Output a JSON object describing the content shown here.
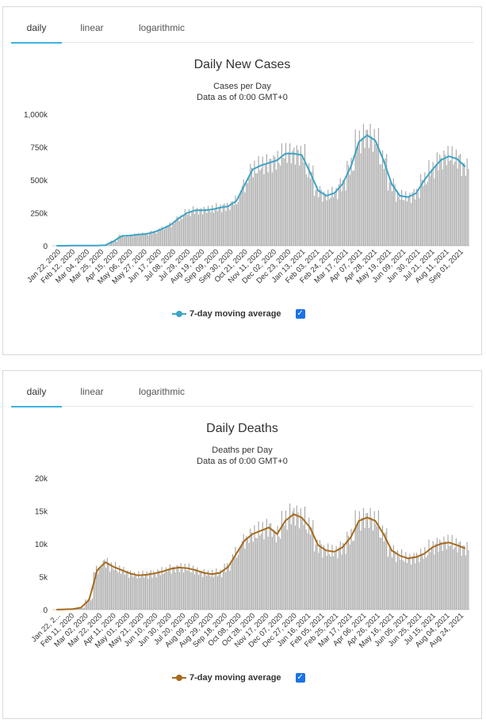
{
  "panels": [
    {
      "id": "cases",
      "tabs": [
        "daily",
        "linear",
        "logarithmic"
      ],
      "active_tab": "daily",
      "legend_label": "7-day moving average",
      "legend_checked": "✓",
      "accent_color": "#3ba4c7",
      "chart_data": {
        "type": "bar",
        "title": "Daily New Cases",
        "subtitle": "Cases per Day",
        "subtitle2": "Data as of 0:00 GMT+0",
        "ylabel": "",
        "xlabel": "",
        "ylim": [
          0,
          1000000
        ],
        "y_ticks": [
          0,
          250000,
          500000,
          750000,
          1000000
        ],
        "y_tick_labels": [
          "0",
          "250k",
          "500k",
          "750k",
          "1,000k"
        ],
        "x_tick_labels": [
          "Jan 22, 2020",
          "Feb 12, 2020",
          "Mar 04, 2020",
          "Mar 25, 2020",
          "Apr 15, 2020",
          "May 06, 2020",
          "May 27, 2020",
          "Jun 17, 2020",
          "Jul 08, 2020",
          "Jul 29, 2020",
          "Aug 19, 2020",
          "Sep 09, 2020",
          "Sep 30, 2020",
          "Oct 21, 2020",
          "Nov 11, 2020",
          "Dec 02, 2020",
          "Dec 23, 2020",
          "Jan 13, 2021",
          "Feb 03, 2021",
          "Feb 24, 2021",
          "Mar 17, 2021",
          "Apr 07, 2021",
          "Apr 28, 2021",
          "May 19, 2021",
          "Jun 09, 2021",
          "Jun 30, 2021",
          "Jul 21, 2021",
          "Aug 11, 2021",
          "Sep 01, 2021"
        ],
        "grid": false,
        "legend_position": "bottom-center",
        "series": [
          {
            "name": "Daily Cases",
            "type": "bar",
            "color": "#a6a6a6",
            "values": [
              0,
              0,
              2000,
              2000,
              1000,
              2000,
              5000,
              35000,
              75000,
              78000,
              85000,
              90000,
              105000,
              130000,
              160000,
              210000,
              250000,
              270000,
              270000,
              275000,
              290000,
              300000,
              340000,
              460000,
              580000,
              610000,
              630000,
              650000,
              700000,
              700000,
              690000,
              560000,
              420000,
              380000,
              400000,
              470000,
              600000,
              790000,
              840000,
              800000,
              650000,
              470000,
              380000,
              370000,
              400000,
              500000,
              580000,
              650000,
              680000,
              660000,
              600000
            ]
          },
          {
            "name": "7-day moving average",
            "type": "line",
            "color": "#3ba4c7",
            "values": [
              0,
              0,
              2000,
              2000,
              1000,
              2000,
              5000,
              35000,
              75000,
              78000,
              85000,
              90000,
              105000,
              130000,
              160000,
              210000,
              250000,
              270000,
              270000,
              275000,
              290000,
              300000,
              340000,
              460000,
              580000,
              610000,
              630000,
              650000,
              700000,
              700000,
              690000,
              560000,
              420000,
              380000,
              400000,
              470000,
              600000,
              790000,
              840000,
              800000,
              650000,
              470000,
              380000,
              370000,
              400000,
              500000,
              580000,
              650000,
              680000,
              660000,
              600000
            ]
          }
        ]
      }
    },
    {
      "id": "deaths",
      "tabs": [
        "daily",
        "linear",
        "logarithmic"
      ],
      "active_tab": "daily",
      "legend_label": "7-day moving average",
      "legend_checked": "✓",
      "accent_color": "#a76a1b",
      "chart_data": {
        "type": "bar",
        "title": "Daily Deaths",
        "subtitle": "Deaths per Day",
        "subtitle2": "Data as of 0:00 GMT+0",
        "ylabel": "",
        "xlabel": "",
        "ylim": [
          0,
          20000
        ],
        "y_ticks": [
          0,
          5000,
          10000,
          15000,
          20000
        ],
        "y_tick_labels": [
          "0",
          "5k",
          "10k",
          "15k",
          "20k"
        ],
        "x_tick_labels": [
          "Jan 22, 2...",
          "Feb 11, 2020",
          "Mar 02, 2020",
          "Mar 22, 2020",
          "Apr 11, 2020",
          "May 01, 2020",
          "May 21, 2020",
          "Jun 10, 2020",
          "Jun 30, 2020",
          "Jul 20, 2020",
          "Aug 09, 2020",
          "Aug 29, 2020",
          "Sep 18, 2020",
          "Oct 08, 2020",
          "Oct 28, 2020",
          "Nov 17, 2020",
          "Dec 07, 2020",
          "Dec 27, 2020",
          "Jan 16, 2021",
          "Feb 05, 2021",
          "Feb 25, 2021",
          "Mar 17, 2021",
          "Apr 06, 2021",
          "Apr 26, 2021",
          "May 16, 2021",
          "Jun 05, 2021",
          "Jun 25, 2021",
          "Jul 15, 2021",
          "Aug 04, 2021",
          "Aug 24, 2021"
        ],
        "grid": false,
        "legend_position": "bottom-center",
        "series": [
          {
            "name": "Daily Deaths",
            "type": "bar",
            "color": "#a6a6a6",
            "values": [
              0,
              50,
              100,
              300,
              1500,
              6000,
              7200,
              6500,
              6000,
              5500,
              5200,
              5300,
              5500,
              5800,
              6200,
              6400,
              6300,
              6000,
              5600,
              5400,
              5600,
              6500,
              8500,
              10500,
              11500,
              12000,
              12500,
              11500,
              13500,
              14500,
              14000,
              12500,
              9800,
              9000,
              8800,
              9500,
              11000,
              13500,
              14000,
              13500,
              11500,
              9000,
              8200,
              7800,
              8000,
              8500,
              9500,
              10000,
              10200,
              9800,
              9300
            ]
          },
          {
            "name": "7-day moving average",
            "type": "line",
            "color": "#a76a1b",
            "values": [
              0,
              50,
              100,
              300,
              1500,
              6000,
              7200,
              6500,
              6000,
              5500,
              5200,
              5300,
              5500,
              5800,
              6200,
              6400,
              6300,
              6000,
              5600,
              5400,
              5600,
              6500,
              8500,
              10500,
              11500,
              12000,
              12500,
              11500,
              13500,
              14500,
              14000,
              12500,
              9800,
              9000,
              8800,
              9500,
              11000,
              13500,
              14000,
              13500,
              11500,
              9000,
              8200,
              7800,
              8000,
              8500,
              9500,
              10000,
              10200,
              9800,
              9300
            ]
          }
        ]
      }
    }
  ]
}
